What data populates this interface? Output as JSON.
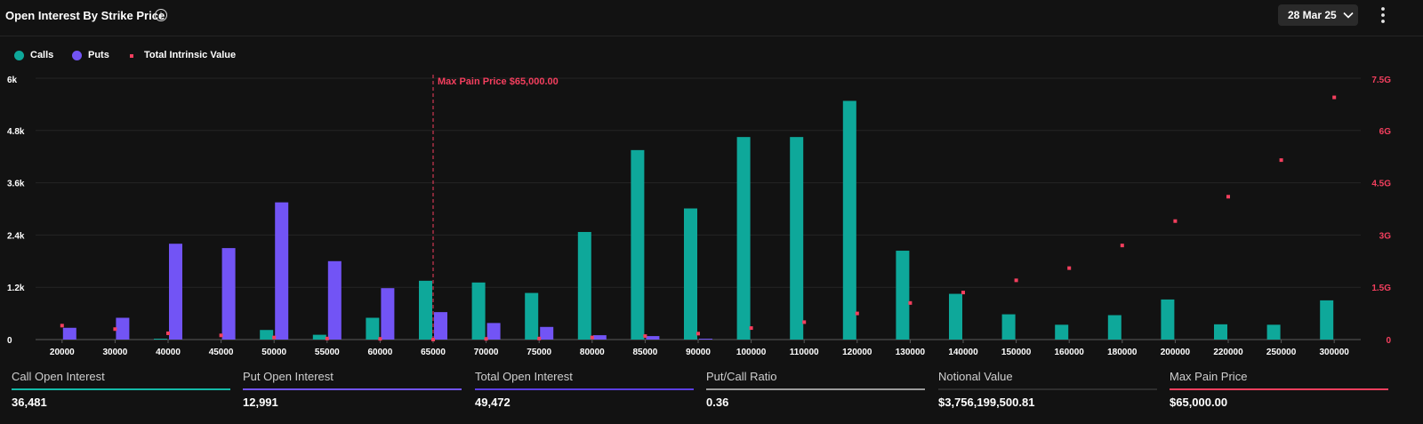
{
  "header": {
    "title": "Open Interest By Strike Price",
    "date_value": "28 Mar 25"
  },
  "legend": [
    {
      "label": "Calls",
      "color": "#0ea89a",
      "shape": "dot"
    },
    {
      "label": "Puts",
      "color": "#7254f5",
      "shape": "dot"
    },
    {
      "label": "Total Intrinsic Value",
      "color": "#f43f5e",
      "shape": "square"
    }
  ],
  "chart_data": {
    "type": "bar",
    "categories": [
      "20000",
      "30000",
      "40000",
      "45000",
      "50000",
      "55000",
      "60000",
      "65000",
      "70000",
      "75000",
      "80000",
      "85000",
      "90000",
      "100000",
      "110000",
      "120000",
      "130000",
      "140000",
      "150000",
      "160000",
      "180000",
      "200000",
      "220000",
      "250000",
      "300000"
    ],
    "series": [
      {
        "name": "Calls",
        "values": [
          0,
          0,
          20,
          0,
          220,
          110,
          500,
          1350,
          1310,
          1070,
          2470,
          4350,
          3010,
          4650,
          4650,
          5480,
          2040,
          1050,
          580,
          340,
          560,
          920,
          350,
          340,
          900
        ]
      },
      {
        "name": "Puts",
        "values": [
          270,
          500,
          2200,
          2100,
          3150,
          1800,
          1180,
          630,
          380,
          290,
          100,
          80,
          20,
          0,
          0,
          0,
          0,
          0,
          0,
          0,
          0,
          0,
          0,
          0,
          0
        ]
      },
      {
        "name": "Total Intrinsic Value",
        "type": "scatter",
        "axis": "right",
        "values": [
          0.4,
          0.3,
          0.18,
          0.12,
          0.06,
          0.03,
          0.02,
          0,
          0.02,
          0.03,
          0.06,
          0.1,
          0.17,
          0.33,
          0.5,
          0.75,
          1.05,
          1.35,
          1.7,
          2.05,
          2.7,
          3.4,
          4.1,
          5.15,
          6.95
        ]
      }
    ],
    "yticks_left": [
      "0",
      "1.2k",
      "2.4k",
      "3.6k",
      "4.8k",
      "6k"
    ],
    "yticks_right": [
      "0",
      "1.5G",
      "3G",
      "4.5G",
      "6G",
      "7.5G"
    ],
    "ylim_left": [
      0,
      6000
    ],
    "ylim_right": [
      0,
      7.5
    ],
    "annotation": {
      "label": "Max Pain Price $65,000.00",
      "category": "65000"
    },
    "grid": true
  },
  "stats": [
    {
      "label": "Call Open Interest",
      "value": "36,481",
      "color": "#14b8a6"
    },
    {
      "label": "Put Open Interest",
      "value": "12,991",
      "color": "#7254f5"
    },
    {
      "label": "Total Open Interest",
      "value": "49,472",
      "color": "#5b3ee0"
    },
    {
      "label": "Put/Call Ratio",
      "value": "0.36",
      "color": "#9a9a9a"
    },
    {
      "label": "Notional Value",
      "value": "$3,756,199,500.81",
      "color": "#2e2e2e"
    },
    {
      "label": "Max Pain Price",
      "value": "$65,000.00",
      "color": "#f43f5e"
    }
  ]
}
